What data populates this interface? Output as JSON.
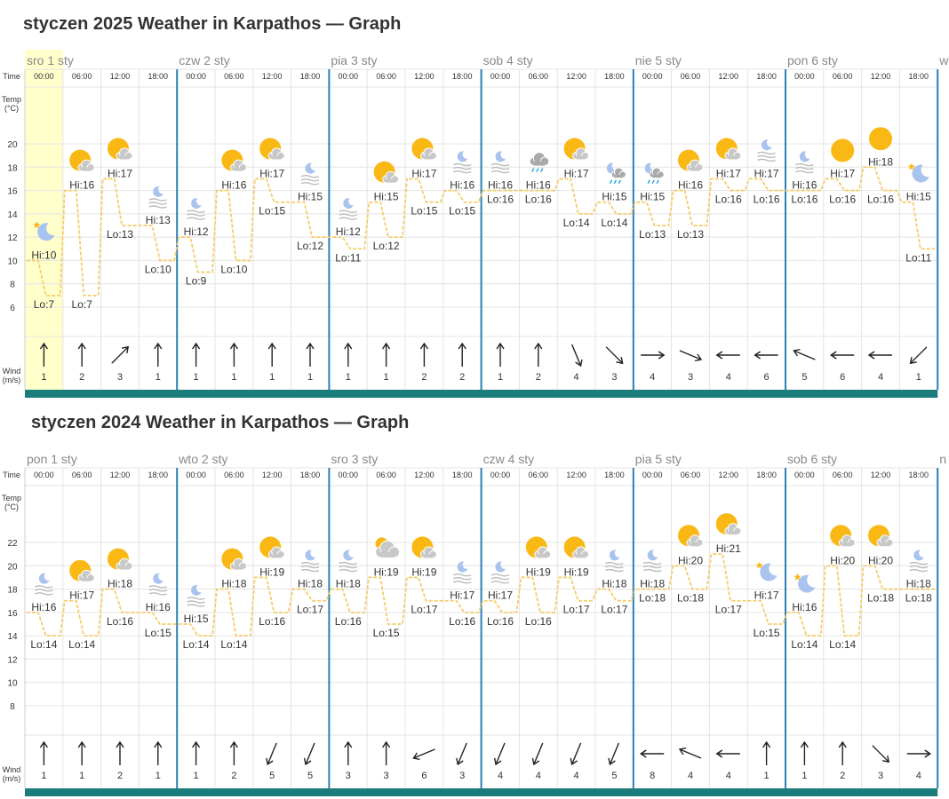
{
  "labels": {
    "time": "Time",
    "temp_line1": "Temp",
    "temp_line2": "(°C)",
    "wind_line1": "Wind",
    "wind_line2": "(m/s)"
  },
  "slot_times": [
    "00:00",
    "06:00",
    "12:00",
    "18:00"
  ],
  "charts": [
    {
      "title": "styczen 2025 Weather in Karpathos — Graph",
      "days": [
        "sro 1 sty",
        "czw 2 sty",
        "pia 3 sty",
        "sob 4 sty",
        "nie 5 sty",
        "pon 6 sty"
      ],
      "partial_next": "w",
      "ticks": [
        "20",
        "18",
        "16",
        "14",
        "12",
        "10",
        "8",
        "6"
      ],
      "ylim": [
        6,
        20
      ],
      "highlight_slot": 0,
      "chart_data": {
        "type": "line",
        "slots": [
          {
            "icon": "moon-star",
            "hi": 10,
            "lo": 7,
            "wind": 1,
            "dir": "S"
          },
          {
            "icon": "sun-cloud",
            "hi": 16,
            "lo": 7,
            "wind": 2,
            "dir": "S"
          },
          {
            "icon": "sun-cloud",
            "hi": 17,
            "lo": 13,
            "wind": 3,
            "dir": "SW"
          },
          {
            "icon": "moon-fog",
            "hi": 13,
            "lo": 10,
            "wind": 1,
            "dir": "S"
          },
          {
            "icon": "moon-fog",
            "hi": 12,
            "lo": 9,
            "wind": 1,
            "dir": "S"
          },
          {
            "icon": "sun-cloud",
            "hi": 16,
            "lo": 10,
            "wind": 1,
            "dir": "S"
          },
          {
            "icon": "sun-cloud",
            "hi": 17,
            "lo": 15,
            "wind": 1,
            "dir": "S"
          },
          {
            "icon": "moon-fog",
            "hi": 15,
            "lo": 12,
            "wind": 1,
            "dir": "S"
          },
          {
            "icon": "moon-fog",
            "hi": 12,
            "lo": 11,
            "wind": 1,
            "dir": "S"
          },
          {
            "icon": "sun-cloud",
            "hi": 15,
            "lo": 12,
            "wind": 1,
            "dir": "S"
          },
          {
            "icon": "sun-cloud",
            "hi": 17,
            "lo": 15,
            "wind": 2,
            "dir": "S"
          },
          {
            "icon": "moon-fog",
            "hi": 16,
            "lo": 15,
            "wind": 2,
            "dir": "S"
          },
          {
            "icon": "moon-fog",
            "hi": 16,
            "lo": 16,
            "wind": 1,
            "dir": "S"
          },
          {
            "icon": "cloud-rain",
            "hi": 16,
            "lo": 16,
            "wind": 2,
            "dir": "S"
          },
          {
            "icon": "sun-cloud",
            "hi": 17,
            "lo": 14,
            "wind": 4,
            "dir": "NNW"
          },
          {
            "icon": "moon-cloud-rain",
            "hi": 15,
            "lo": 14,
            "wind": 3,
            "dir": "NW"
          },
          {
            "icon": "moon-cloud-rain",
            "hi": 15,
            "lo": 13,
            "wind": 4,
            "dir": "W"
          },
          {
            "icon": "sun-cloud",
            "hi": 16,
            "lo": 13,
            "wind": 3,
            "dir": "WNW"
          },
          {
            "icon": "sun-cloud",
            "hi": 17,
            "lo": 16,
            "wind": 4,
            "dir": "E"
          },
          {
            "icon": "moon-fog",
            "hi": 17,
            "lo": 16,
            "wind": 6,
            "dir": "E"
          },
          {
            "icon": "moon-fog",
            "hi": 16,
            "lo": 16,
            "wind": 5,
            "dir": "ESE"
          },
          {
            "icon": "sun",
            "hi": 17,
            "lo": 16,
            "wind": 6,
            "dir": "E"
          },
          {
            "icon": "sun",
            "hi": 18,
            "lo": 16,
            "wind": 4,
            "dir": "E"
          },
          {
            "icon": "moon-star",
            "hi": 15,
            "lo": 11,
            "wind": 1,
            "dir": "NE"
          }
        ]
      }
    },
    {
      "title": "styczen 2024 Weather in Karpathos — Graph",
      "days": [
        "pon 1 sty",
        "wto 2 sty",
        "sro 3 sty",
        "czw 4 sty",
        "pia 5 sty",
        "sob 6 sty"
      ],
      "partial_next": "n",
      "ticks": [
        "22",
        "20",
        "18",
        "16",
        "14",
        "12",
        "10",
        "8"
      ],
      "ylim": [
        8,
        22
      ],
      "highlight_slot": null,
      "chart_data": {
        "type": "line",
        "slots": [
          {
            "icon": "moon-fog",
            "hi": 16,
            "lo": 14,
            "wind": 1,
            "dir": "S"
          },
          {
            "icon": "sun-cloud",
            "hi": 17,
            "lo": 14,
            "wind": 1,
            "dir": "S"
          },
          {
            "icon": "sun-cloud",
            "hi": 18,
            "lo": 16,
            "wind": 2,
            "dir": "S"
          },
          {
            "icon": "moon-fog",
            "hi": 16,
            "lo": 15,
            "wind": 1,
            "dir": "S"
          },
          {
            "icon": "moon-fog",
            "hi": 15,
            "lo": 14,
            "wind": 1,
            "dir": "S"
          },
          {
            "icon": "sun-cloud",
            "hi": 18,
            "lo": 14,
            "wind": 2,
            "dir": "S"
          },
          {
            "icon": "sun-cloud",
            "hi": 19,
            "lo": 16,
            "wind": 5,
            "dir": "NNE"
          },
          {
            "icon": "moon-fog",
            "hi": 18,
            "lo": 17,
            "wind": 5,
            "dir": "NNE"
          },
          {
            "icon": "moon-fog",
            "hi": 18,
            "lo": 16,
            "wind": 3,
            "dir": "S"
          },
          {
            "icon": "cloud-sun",
            "hi": 19,
            "lo": 15,
            "wind": 3,
            "dir": "S"
          },
          {
            "icon": "sun-cloud",
            "hi": 19,
            "lo": 17,
            "wind": 6,
            "dir": "ENE"
          },
          {
            "icon": "moon-fog",
            "hi": 17,
            "lo": 16,
            "wind": 3,
            "dir": "NNE"
          },
          {
            "icon": "moon-fog",
            "hi": 17,
            "lo": 16,
            "wind": 4,
            "dir": "NNE"
          },
          {
            "icon": "sun-cloud",
            "hi": 19,
            "lo": 16,
            "wind": 4,
            "dir": "NNE"
          },
          {
            "icon": "sun-cloud",
            "hi": 19,
            "lo": 17,
            "wind": 4,
            "dir": "NNE"
          },
          {
            "icon": "moon-fog",
            "hi": 18,
            "lo": 17,
            "wind": 5,
            "dir": "NNE"
          },
          {
            "icon": "moon-fog",
            "hi": 18,
            "lo": 18,
            "wind": 8,
            "dir": "E"
          },
          {
            "icon": "sun-cloud",
            "hi": 20,
            "lo": 18,
            "wind": 4,
            "dir": "ESE"
          },
          {
            "icon": "sun-cloud",
            "hi": 21,
            "lo": 17,
            "wind": 4,
            "dir": "E"
          },
          {
            "icon": "moon-star",
            "hi": 17,
            "lo": 15,
            "wind": 1,
            "dir": "S"
          },
          {
            "icon": "moon-star",
            "hi": 16,
            "lo": 14,
            "wind": 1,
            "dir": "S"
          },
          {
            "icon": "sun-cloud",
            "hi": 20,
            "lo": 14,
            "wind": 2,
            "dir": "S"
          },
          {
            "icon": "sun-cloud",
            "hi": 20,
            "lo": 18,
            "wind": 3,
            "dir": "NW"
          },
          {
            "icon": "moon-fog",
            "hi": 18,
            "lo": 18,
            "wind": 4,
            "dir": "W"
          }
        ]
      }
    }
  ],
  "colors": {
    "day_border": "#2a7fb8",
    "grid": "#e4e4e4",
    "temp_line": "#f5cc6a",
    "footer_bar": "#1a7d7c",
    "highlight": "#ffffcc",
    "sun": "#f9b814",
    "cloud": "#c8c8c8",
    "moon": "#a9c3ef",
    "rain": "#2aa7e6",
    "text": "#333333",
    "day_label": "#888888"
  }
}
